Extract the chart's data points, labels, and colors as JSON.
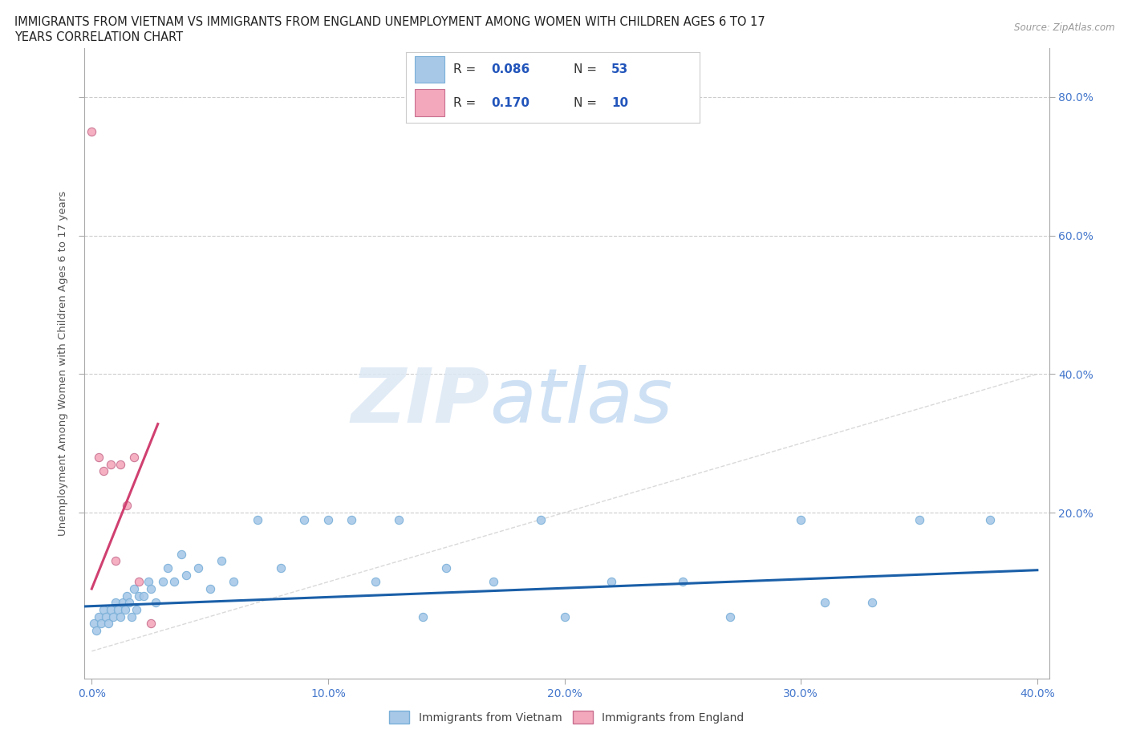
{
  "title_line1": "IMMIGRANTS FROM VIETNAM VS IMMIGRANTS FROM ENGLAND UNEMPLOYMENT AMONG WOMEN WITH CHILDREN AGES 6 TO 17",
  "title_line2": "YEARS CORRELATION CHART",
  "source_text": "Source: ZipAtlas.com",
  "ylabel": "Unemployment Among Women with Children Ages 6 to 17 years",
  "xlim": [
    -0.003,
    0.405
  ],
  "ylim": [
    -0.04,
    0.87
  ],
  "xtick_values": [
    0.0,
    0.1,
    0.2,
    0.3,
    0.4
  ],
  "xtick_labels": [
    "0.0%",
    "10.0%",
    "20.0%",
    "30.0%",
    "40.0%"
  ],
  "ytick_values": [
    0.2,
    0.4,
    0.6,
    0.8
  ],
  "ytick_labels": [
    "20.0%",
    "40.0%",
    "60.0%",
    "80.0%"
  ],
  "watermark_zip": "ZIP",
  "watermark_atlas": "atlas",
  "legend_r1": "R = 0.086",
  "legend_n1": "N = 53",
  "legend_r2": "R = 0.170",
  "legend_n2": "N = 10",
  "color_vietnam": "#a8c8e8",
  "color_england": "#f4a8bc",
  "color_vietnam_line": "#1a5fa8",
  "color_england_line": "#d04070",
  "color_diagonal": "#d0d0d0",
  "background_color": "#ffffff",
  "vietnam_x": [
    0.001,
    0.002,
    0.003,
    0.004,
    0.005,
    0.006,
    0.007,
    0.008,
    0.009,
    0.01,
    0.011,
    0.012,
    0.013,
    0.014,
    0.015,
    0.016,
    0.017,
    0.018,
    0.019,
    0.02,
    0.022,
    0.024,
    0.025,
    0.027,
    0.03,
    0.032,
    0.035,
    0.038,
    0.04,
    0.045,
    0.05,
    0.055,
    0.06,
    0.07,
    0.08,
    0.09,
    0.1,
    0.11,
    0.12,
    0.13,
    0.14,
    0.15,
    0.17,
    0.19,
    0.2,
    0.22,
    0.25,
    0.27,
    0.3,
    0.31,
    0.33,
    0.35,
    0.38
  ],
  "vietnam_y": [
    0.04,
    0.03,
    0.05,
    0.04,
    0.06,
    0.05,
    0.04,
    0.06,
    0.05,
    0.07,
    0.06,
    0.05,
    0.07,
    0.06,
    0.08,
    0.07,
    0.05,
    0.09,
    0.06,
    0.08,
    0.08,
    0.1,
    0.09,
    0.07,
    0.1,
    0.12,
    0.1,
    0.14,
    0.11,
    0.12,
    0.09,
    0.13,
    0.1,
    0.19,
    0.12,
    0.19,
    0.19,
    0.19,
    0.1,
    0.19,
    0.05,
    0.12,
    0.1,
    0.19,
    0.05,
    0.1,
    0.1,
    0.05,
    0.19,
    0.07,
    0.07,
    0.19,
    0.19
  ],
  "england_x": [
    0.0,
    0.003,
    0.005,
    0.008,
    0.01,
    0.012,
    0.015,
    0.018,
    0.02,
    0.025
  ],
  "england_y": [
    0.75,
    0.28,
    0.26,
    0.27,
    0.13,
    0.27,
    0.21,
    0.28,
    0.1,
    0.04
  ],
  "england_trend_x": [
    0.0,
    0.025
  ],
  "england_trend_y_params": {
    "slope": 8.5,
    "intercept": 0.09
  },
  "vietnam_trend_params": {
    "slope": 0.13,
    "intercept": 0.065
  }
}
